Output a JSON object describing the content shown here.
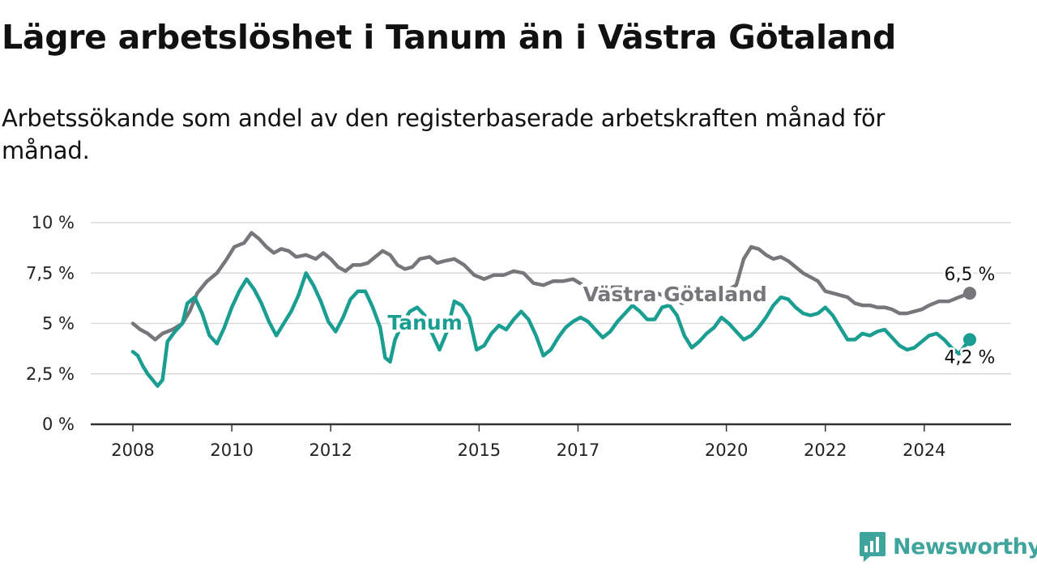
{
  "title": "Lägre arbetslöshet i Tanum än i Västra Götaland",
  "subtitle": "Arbetssökande som andel av den registerbaserade arbetskraften månad för månad.",
  "brand": {
    "name": "Newsworthy",
    "icon": "bar-chart-icon",
    "color": "#3fa59c"
  },
  "chart_data": {
    "type": "line",
    "x_range": [
      2008.0,
      2024.92
    ],
    "ylim": [
      0,
      10
    ],
    "y_ticks": [
      0,
      2.5,
      5,
      7.5,
      10
    ],
    "y_tick_labels": [
      "0 %",
      "2,5 %",
      "5 %",
      "7,5 %",
      "10 %"
    ],
    "x_ticks": [
      2008,
      2010,
      2012,
      2015,
      2017,
      2020,
      2022,
      2024
    ],
    "x_tick_labels": [
      "2008",
      "2010",
      "2012",
      "2015",
      "2017",
      "2020",
      "2022",
      "2024"
    ],
    "grid": true,
    "series": [
      {
        "name": "Västra Götaland",
        "color": "#77767a",
        "end_label": "6,5 %",
        "points": [
          [
            2008.0,
            5.0
          ],
          [
            2008.15,
            4.7
          ],
          [
            2008.3,
            4.5
          ],
          [
            2008.45,
            4.2
          ],
          [
            2008.6,
            4.5
          ],
          [
            2008.8,
            4.7
          ],
          [
            2009.0,
            5.0
          ],
          [
            2009.15,
            5.6
          ],
          [
            2009.3,
            6.5
          ],
          [
            2009.5,
            7.1
          ],
          [
            2009.7,
            7.5
          ],
          [
            2009.9,
            8.2
          ],
          [
            2010.05,
            8.8
          ],
          [
            2010.25,
            9.0
          ],
          [
            2010.4,
            9.5
          ],
          [
            2010.55,
            9.2
          ],
          [
            2010.7,
            8.8
          ],
          [
            2010.85,
            8.5
          ],
          [
            2011.0,
            8.7
          ],
          [
            2011.15,
            8.6
          ],
          [
            2011.3,
            8.3
          ],
          [
            2011.5,
            8.4
          ],
          [
            2011.7,
            8.2
          ],
          [
            2011.85,
            8.5
          ],
          [
            2012.0,
            8.2
          ],
          [
            2012.15,
            7.8
          ],
          [
            2012.3,
            7.6
          ],
          [
            2012.45,
            7.9
          ],
          [
            2012.6,
            7.9
          ],
          [
            2012.75,
            8.0
          ],
          [
            2012.9,
            8.3
          ],
          [
            2013.05,
            8.6
          ],
          [
            2013.2,
            8.4
          ],
          [
            2013.35,
            7.9
          ],
          [
            2013.5,
            7.7
          ],
          [
            2013.65,
            7.8
          ],
          [
            2013.8,
            8.2
          ],
          [
            2014.0,
            8.3
          ],
          [
            2014.15,
            8.0
          ],
          [
            2014.3,
            8.1
          ],
          [
            2014.5,
            8.2
          ],
          [
            2014.7,
            7.9
          ],
          [
            2014.9,
            7.4
          ],
          [
            2015.1,
            7.2
          ],
          [
            2015.3,
            7.4
          ],
          [
            2015.5,
            7.4
          ],
          [
            2015.7,
            7.6
          ],
          [
            2015.9,
            7.5
          ],
          [
            2016.1,
            7.0
          ],
          [
            2016.3,
            6.9
          ],
          [
            2016.5,
            7.1
          ],
          [
            2016.7,
            7.1
          ],
          [
            2016.9,
            7.2
          ],
          [
            2017.1,
            6.9
          ],
          [
            2017.3,
            6.6
          ],
          [
            2017.5,
            6.7
          ],
          [
            2017.7,
            6.8
          ],
          [
            2017.9,
            6.8
          ],
          [
            2018.1,
            6.6
          ],
          [
            2018.3,
            6.5
          ],
          [
            2018.5,
            6.6
          ],
          [
            2018.7,
            6.4
          ],
          [
            2018.9,
            6.3
          ],
          [
            2019.1,
            6.0
          ],
          [
            2019.3,
            6.1
          ],
          [
            2019.5,
            6.4
          ],
          [
            2019.7,
            6.4
          ],
          [
            2019.9,
            6.5
          ],
          [
            2020.05,
            6.7
          ],
          [
            2020.2,
            6.9
          ],
          [
            2020.35,
            8.2
          ],
          [
            2020.5,
            8.8
          ],
          [
            2020.65,
            8.7
          ],
          [
            2020.8,
            8.4
          ],
          [
            2020.95,
            8.2
          ],
          [
            2021.1,
            8.3
          ],
          [
            2021.25,
            8.1
          ],
          [
            2021.4,
            7.8
          ],
          [
            2021.55,
            7.5
          ],
          [
            2021.7,
            7.3
          ],
          [
            2021.85,
            7.1
          ],
          [
            2022.0,
            6.6
          ],
          [
            2022.15,
            6.5
          ],
          [
            2022.3,
            6.4
          ],
          [
            2022.45,
            6.3
          ],
          [
            2022.6,
            6.0
          ],
          [
            2022.75,
            5.9
          ],
          [
            2022.9,
            5.9
          ],
          [
            2023.05,
            5.8
          ],
          [
            2023.2,
            5.8
          ],
          [
            2023.35,
            5.7
          ],
          [
            2023.5,
            5.5
          ],
          [
            2023.65,
            5.5
          ],
          [
            2023.8,
            5.6
          ],
          [
            2023.95,
            5.7
          ],
          [
            2024.1,
            5.9
          ],
          [
            2024.3,
            6.1
          ],
          [
            2024.5,
            6.1
          ],
          [
            2024.7,
            6.3
          ],
          [
            2024.92,
            6.5
          ]
        ]
      },
      {
        "name": "Tanum",
        "color": "#1a9e92",
        "end_label": "4,2 %",
        "points": [
          [
            2008.0,
            3.6
          ],
          [
            2008.1,
            3.4
          ],
          [
            2008.2,
            2.9
          ],
          [
            2008.3,
            2.5
          ],
          [
            2008.4,
            2.2
          ],
          [
            2008.5,
            1.9
          ],
          [
            2008.6,
            2.2
          ],
          [
            2008.7,
            4.1
          ],
          [
            2008.85,
            4.6
          ],
          [
            2009.0,
            5.0
          ],
          [
            2009.1,
            6.0
          ],
          [
            2009.25,
            6.3
          ],
          [
            2009.4,
            5.5
          ],
          [
            2009.55,
            4.4
          ],
          [
            2009.7,
            4.0
          ],
          [
            2009.85,
            4.8
          ],
          [
            2010.0,
            5.8
          ],
          [
            2010.15,
            6.6
          ],
          [
            2010.3,
            7.2
          ],
          [
            2010.45,
            6.7
          ],
          [
            2010.6,
            6.0
          ],
          [
            2010.75,
            5.1
          ],
          [
            2010.9,
            4.4
          ],
          [
            2011.05,
            5.0
          ],
          [
            2011.2,
            5.6
          ],
          [
            2011.35,
            6.4
          ],
          [
            2011.5,
            7.5
          ],
          [
            2011.65,
            6.9
          ],
          [
            2011.8,
            6.1
          ],
          [
            2011.95,
            5.1
          ],
          [
            2012.1,
            4.6
          ],
          [
            2012.25,
            5.3
          ],
          [
            2012.4,
            6.2
          ],
          [
            2012.55,
            6.6
          ],
          [
            2012.7,
            6.6
          ],
          [
            2012.85,
            5.8
          ],
          [
            2013.0,
            4.8
          ],
          [
            2013.1,
            3.3
          ],
          [
            2013.2,
            3.1
          ],
          [
            2013.3,
            4.2
          ],
          [
            2013.45,
            5.0
          ],
          [
            2013.6,
            5.6
          ],
          [
            2013.75,
            5.8
          ],
          [
            2013.9,
            5.4
          ],
          [
            2014.05,
            4.5
          ],
          [
            2014.2,
            3.7
          ],
          [
            2014.35,
            4.6
          ],
          [
            2014.5,
            6.1
          ],
          [
            2014.65,
            5.9
          ],
          [
            2014.8,
            5.3
          ],
          [
            2014.95,
            3.7
          ],
          [
            2015.1,
            3.9
          ],
          [
            2015.25,
            4.5
          ],
          [
            2015.4,
            4.9
          ],
          [
            2015.55,
            4.7
          ],
          [
            2015.7,
            5.2
          ],
          [
            2015.85,
            5.6
          ],
          [
            2016.0,
            5.2
          ],
          [
            2016.15,
            4.4
          ],
          [
            2016.3,
            3.4
          ],
          [
            2016.45,
            3.7
          ],
          [
            2016.6,
            4.3
          ],
          [
            2016.75,
            4.8
          ],
          [
            2016.9,
            5.1
          ],
          [
            2017.05,
            5.3
          ],
          [
            2017.2,
            5.1
          ],
          [
            2017.35,
            4.7
          ],
          [
            2017.5,
            4.3
          ],
          [
            2017.65,
            4.6
          ],
          [
            2017.8,
            5.1
          ],
          [
            2017.95,
            5.5
          ],
          [
            2018.1,
            5.9
          ],
          [
            2018.25,
            5.6
          ],
          [
            2018.4,
            5.2
          ],
          [
            2018.55,
            5.2
          ],
          [
            2018.7,
            5.8
          ],
          [
            2018.85,
            5.9
          ],
          [
            2019.0,
            5.4
          ],
          [
            2019.15,
            4.4
          ],
          [
            2019.3,
            3.8
          ],
          [
            2019.45,
            4.1
          ],
          [
            2019.6,
            4.5
          ],
          [
            2019.75,
            4.8
          ],
          [
            2019.9,
            5.3
          ],
          [
            2020.05,
            5.0
          ],
          [
            2020.2,
            4.6
          ],
          [
            2020.35,
            4.2
          ],
          [
            2020.5,
            4.4
          ],
          [
            2020.65,
            4.8
          ],
          [
            2020.8,
            5.3
          ],
          [
            2020.95,
            5.9
          ],
          [
            2021.1,
            6.3
          ],
          [
            2021.25,
            6.2
          ],
          [
            2021.4,
            5.8
          ],
          [
            2021.55,
            5.5
          ],
          [
            2021.7,
            5.4
          ],
          [
            2021.85,
            5.5
          ],
          [
            2022.0,
            5.8
          ],
          [
            2022.15,
            5.4
          ],
          [
            2022.3,
            4.8
          ],
          [
            2022.45,
            4.2
          ],
          [
            2022.6,
            4.2
          ],
          [
            2022.75,
            4.5
          ],
          [
            2022.9,
            4.4
          ],
          [
            2023.05,
            4.6
          ],
          [
            2023.2,
            4.7
          ],
          [
            2023.35,
            4.3
          ],
          [
            2023.5,
            3.9
          ],
          [
            2023.65,
            3.7
          ],
          [
            2023.8,
            3.8
          ],
          [
            2023.95,
            4.1
          ],
          [
            2024.1,
            4.4
          ],
          [
            2024.25,
            4.5
          ],
          [
            2024.4,
            4.2
          ],
          [
            2024.55,
            3.8
          ],
          [
            2024.7,
            3.5
          ],
          [
            2024.92,
            4.2
          ]
        ]
      }
    ],
    "annotations": [
      {
        "text": "Västra Götaland",
        "series": "Västra Götaland",
        "x": 2017.1,
        "y": 6.1
      },
      {
        "text": "Tanum",
        "series": "Tanum",
        "x": 2013.15,
        "y": 4.7
      }
    ]
  }
}
